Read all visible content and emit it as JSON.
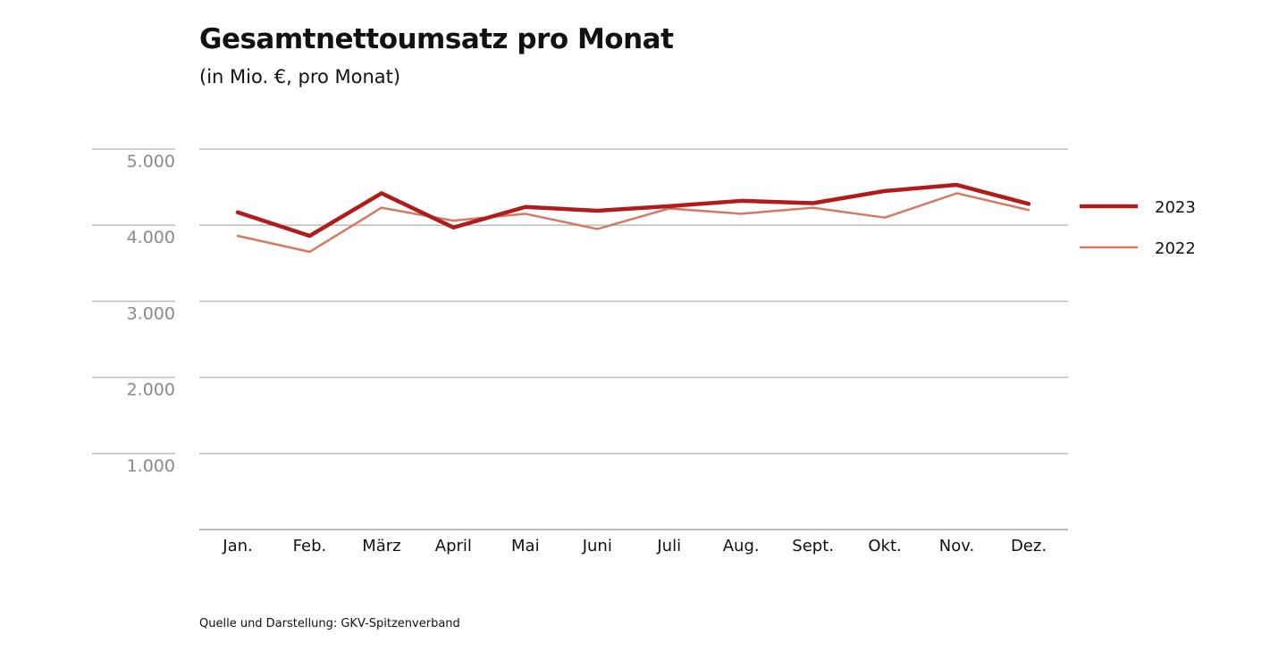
{
  "chart_data": {
    "type": "line",
    "title": "Gesamtnettoumsatz pro Monat",
    "subtitle": "(in Mio. €, pro Monat)",
    "categories": [
      "Jan.",
      "Feb.",
      "März",
      "April",
      "Mai",
      "Juni",
      "Juli",
      "Aug.",
      "Sept.",
      "Okt.",
      "Nov.",
      "Dez."
    ],
    "y_ticks": [
      "1.000",
      "2.000",
      "3.000",
      "4.000",
      "5.000"
    ],
    "y_tick_values": [
      1000,
      2000,
      3000,
      4000,
      5000
    ],
    "ylim": [
      0,
      5000
    ],
    "grid": true,
    "legend_position": "right",
    "series": [
      {
        "name": "2023",
        "color": "#b01c1c",
        "values": [
          4170,
          3860,
          4420,
          3970,
          4240,
          4190,
          4250,
          4320,
          4290,
          4450,
          4530,
          4280
        ]
      },
      {
        "name": "2022",
        "color": "#d27a66",
        "values": [
          3860,
          3650,
          4230,
          4060,
          4150,
          3950,
          4220,
          4150,
          4230,
          4100,
          4420,
          4200
        ]
      }
    ]
  },
  "source": "Quelle und Darstellung: GKV-Spitzenverband"
}
